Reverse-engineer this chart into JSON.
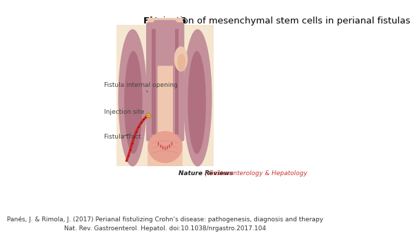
{
  "title_bold": "Figure 6",
  "title_normal": " Injection of mesenchymal stem cells in perianal fistulas",
  "title_fontsize": 9.5,
  "citation_line1": "Panés, J. & Rimola, J. (2017) Perianal fistulizing Crohn’s disease: pathogenesis, diagnosis and therapy",
  "citation_line2": "Nat. Rev. Gastroenterol. Hepatol. doi:10.1038/nrgastro.2017.104",
  "citation_fontsize": 6.5,
  "bg_color": "#ffffff",
  "label_fistula_internal": "Fistula internal opening",
  "label_injection_site": "Injection site",
  "label_fistula_tract": "Fistula tract",
  "nature_reviews_bold": "Nature Reviews",
  "nature_reviews_normal": " | Gastroenterology & Hepatology",
  "nature_reviews_fontsize": 6.5,
  "label_fontsize": 6.5,
  "skin_color": "#f5e6d0",
  "muscle_color": "#c4909a",
  "muscle_inner_color": "#b07080",
  "canal_color": "#f0c8b0",
  "fistula_tract_color": "#cc2222",
  "stem_cell_color": "#ddaa44",
  "hair_color": "#cc3333"
}
